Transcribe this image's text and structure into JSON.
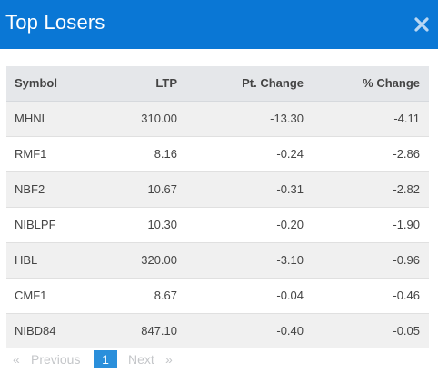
{
  "dialog": {
    "title": "Top Losers"
  },
  "icons": {
    "close": "close-icon"
  },
  "colors": {
    "header": "#0a77d5",
    "negative": "#e03434",
    "page_active": "#2a8fdb"
  },
  "table": {
    "columns": [
      "Symbol",
      "LTP",
      "Pt. Change",
      "% Change"
    ],
    "rows": [
      {
        "symbol": "MHNL",
        "ltp": "310.00",
        "pt_change": "-13.30",
        "pct_change": "-4.11"
      },
      {
        "symbol": "RMF1",
        "ltp": "8.16",
        "pt_change": "-0.24",
        "pct_change": "-2.86"
      },
      {
        "symbol": "NBF2",
        "ltp": "10.67",
        "pt_change": "-0.31",
        "pct_change": "-2.82"
      },
      {
        "symbol": "NIBLPF",
        "ltp": "10.30",
        "pt_change": "-0.20",
        "pct_change": "-1.90"
      },
      {
        "symbol": "HBL",
        "ltp": "320.00",
        "pt_change": "-3.10",
        "pct_change": "-0.96"
      },
      {
        "symbol": "CMF1",
        "ltp": "8.67",
        "pt_change": "-0.04",
        "pct_change": "-0.46"
      },
      {
        "symbol": "NIBD84",
        "ltp": "847.10",
        "pt_change": "-0.40",
        "pct_change": "-0.05"
      }
    ]
  },
  "pagination": {
    "prev_arrow": "«",
    "prev_label": "Previous",
    "current_page": "1",
    "next_label": "Next",
    "next_arrow": "»"
  }
}
